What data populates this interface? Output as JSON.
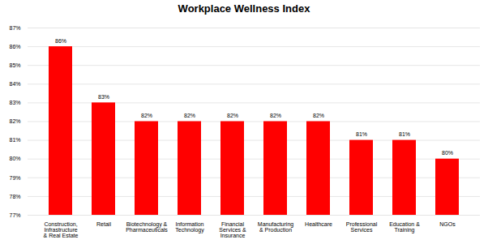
{
  "chart_data": {
    "type": "bar",
    "title": "Workplace Wellness Index",
    "categories": [
      "Construction,\nInfrastructure\n& Real Estate",
      "Retail",
      "Biotechnology &\nPharmaceuticals",
      "Information\nTechnology",
      "Financial\nServices &\nInsurance",
      "Manufacturing\n& Production",
      "Healthcare",
      "Professional\nServices",
      "Education &\nTraining",
      "NGOs"
    ],
    "values": [
      86,
      83,
      82,
      82,
      82,
      82,
      82,
      81,
      81,
      80
    ],
    "value_labels": [
      "86%",
      "83%",
      "82%",
      "82%",
      "82%",
      "82%",
      "82%",
      "81%",
      "81%",
      "80%"
    ],
    "color": "#ff0000",
    "ylim": [
      77,
      87
    ],
    "yticks": [
      {
        "value": 77,
        "label": "77%"
      },
      {
        "value": 78,
        "label": "78%"
      },
      {
        "value": 79,
        "label": "79%"
      },
      {
        "value": 80,
        "label": "80%"
      },
      {
        "value": 81,
        "label": "81%"
      },
      {
        "value": 82,
        "label": "82%"
      },
      {
        "value": 83,
        "label": "83%"
      },
      {
        "value": 84,
        "label": "84%"
      },
      {
        "value": 85,
        "label": "85%"
      },
      {
        "value": 86,
        "label": "86%"
      },
      {
        "value": 87,
        "label": "87%"
      }
    ],
    "grid": true,
    "data_labels": true
  }
}
